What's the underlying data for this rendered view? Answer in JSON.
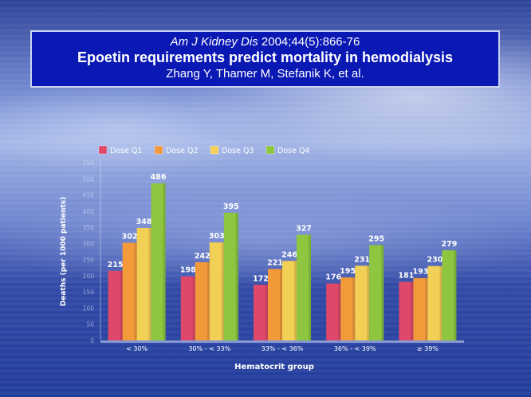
{
  "header": {
    "journal_italic": "Am J Kidney Dis",
    "journal_rest": " 2004;44(5):866-76",
    "title": "Epoetin requirements predict mortality in hemodialysis",
    "authors": "Zhang Y, Thamer M, Stefanik K, et al."
  },
  "chart_data": {
    "type": "bar",
    "categories": [
      "< 30%",
      "30% - < 33%",
      "33% - < 36%",
      "36% - < 39%",
      "≥ 39%"
    ],
    "series": [
      {
        "name": "Dose Q1",
        "color": "#e0486a",
        "values": [
          215,
          198,
          172,
          176,
          181
        ]
      },
      {
        "name": "Dose Q2",
        "color": "#f29a3a",
        "values": [
          302,
          242,
          221,
          195,
          193
        ]
      },
      {
        "name": "Dose Q3",
        "color": "#f2cf55",
        "values": [
          348,
          303,
          246,
          231,
          230
        ]
      },
      {
        "name": "Dose Q4",
        "color": "#8ec63f",
        "values": [
          486,
          395,
          327,
          295,
          279
        ]
      }
    ],
    "xlabel": "Hematocrit group",
    "ylabel": "Deaths (per 1000 patients)",
    "ylim": [
      0,
      550
    ],
    "yticks": [
      0,
      50,
      100,
      150,
      200,
      250,
      300,
      350,
      400,
      450,
      500,
      550
    ],
    "legend": "top-left",
    "grid": false
  }
}
